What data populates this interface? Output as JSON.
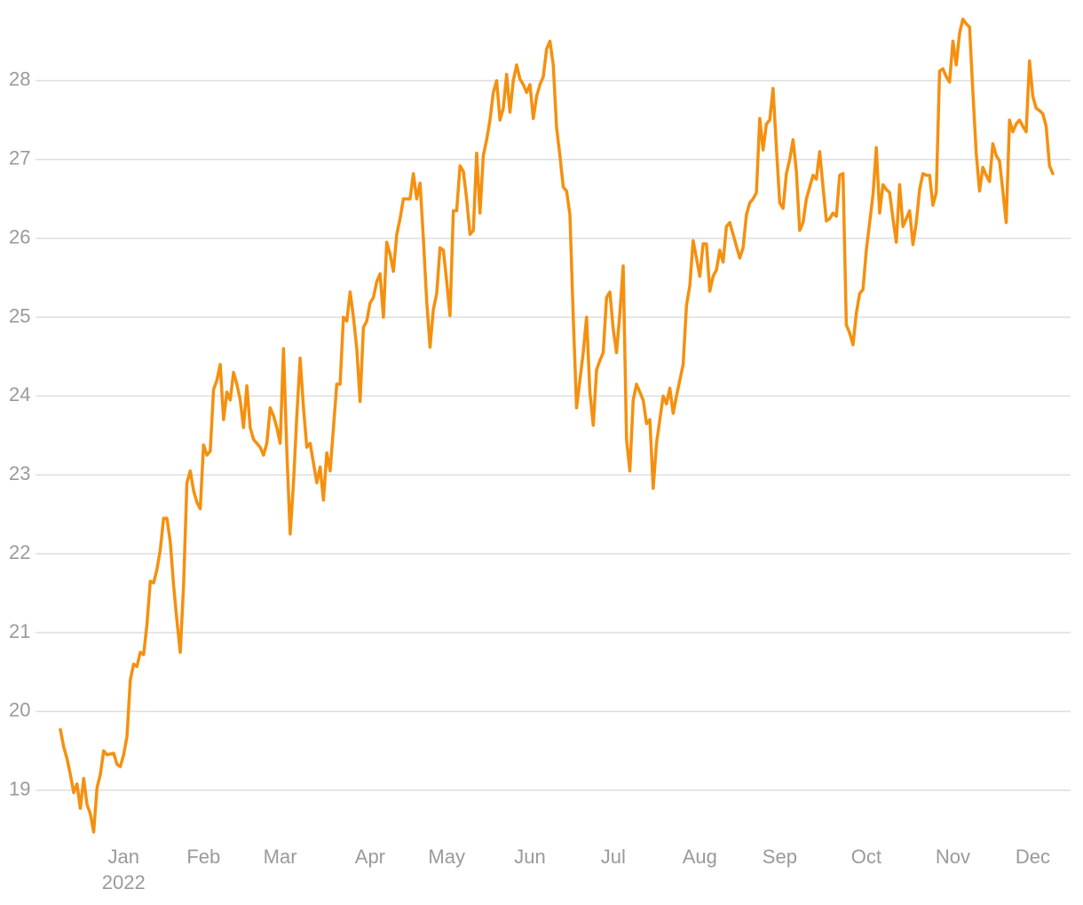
{
  "chart_data": {
    "type": "line",
    "categories": [
      null,
      null,
      null,
      null,
      null,
      null,
      null,
      null,
      null,
      null,
      null,
      null,
      null,
      null,
      null,
      null,
      null,
      null,
      null,
      "Jan",
      null,
      null,
      null,
      null,
      null,
      null,
      null,
      null,
      null,
      null,
      null,
      null,
      null,
      null,
      null,
      null,
      null,
      null,
      null,
      null,
      null,
      null,
      null,
      "Feb",
      null,
      null,
      null,
      null,
      null,
      null,
      null,
      null,
      null,
      null,
      null,
      null,
      null,
      null,
      null,
      null,
      null,
      null,
      null,
      null,
      null,
      null,
      "Mar",
      null,
      null,
      null,
      null,
      null,
      null,
      null,
      null,
      null,
      null,
      null,
      null,
      null,
      null,
      null,
      null,
      null,
      null,
      null,
      null,
      null,
      null,
      null,
      null,
      null,
      null,
      "Apr",
      null,
      null,
      null,
      null,
      null,
      null,
      null,
      null,
      null,
      null,
      null,
      null,
      null,
      null,
      null,
      null,
      null,
      null,
      null,
      null,
      null,
      null,
      "May",
      null,
      null,
      null,
      null,
      null,
      null,
      null,
      null,
      null,
      null,
      null,
      null,
      null,
      null,
      null,
      null,
      null,
      null,
      null,
      null,
      null,
      null,
      null,
      null,
      "Jun",
      null,
      null,
      null,
      null,
      null,
      null,
      null,
      null,
      null,
      null,
      null,
      null,
      null,
      null,
      null,
      null,
      null,
      null,
      null,
      null,
      null,
      null,
      null,
      null,
      "Jul",
      null,
      null,
      null,
      null,
      null,
      null,
      null,
      null,
      null,
      null,
      null,
      null,
      null,
      null,
      null,
      null,
      null,
      null,
      null,
      null,
      null,
      null,
      null,
      null,
      null,
      "Aug",
      null,
      null,
      null,
      null,
      null,
      null,
      null,
      null,
      null,
      null,
      null,
      null,
      null,
      null,
      null,
      null,
      null,
      null,
      null,
      null,
      null,
      null,
      null,
      "Sep",
      null,
      null,
      null,
      null,
      null,
      null,
      null,
      null,
      null,
      null,
      null,
      null,
      null,
      null,
      null,
      null,
      null,
      null,
      null,
      null,
      null,
      null,
      null,
      null,
      null,
      "Oct",
      null,
      null,
      null,
      null,
      null,
      null,
      null,
      null,
      null,
      null,
      null,
      null,
      null,
      null,
      null,
      null,
      null,
      null,
      null,
      null,
      null,
      null,
      null,
      null,
      null,
      "Nov",
      null,
      null,
      null,
      null,
      null,
      null,
      null,
      null,
      null,
      null,
      null,
      null,
      null,
      null,
      null,
      null,
      null,
      null,
      null,
      null,
      null,
      null,
      null,
      "Dec",
      null,
      null,
      null,
      null,
      null,
      null
    ],
    "year_label": "2022",
    "series": [
      {
        "color": "#f5900f",
        "values": [
          19.77,
          19.55,
          19.4,
          19.2,
          18.97,
          19.08,
          18.77,
          19.15,
          18.82,
          18.7,
          18.47,
          19.03,
          19.2,
          19.5,
          19.45,
          19.46,
          19.47,
          19.33,
          19.3,
          19.45,
          19.68,
          20.4,
          20.6,
          20.57,
          20.75,
          20.72,
          21.1,
          21.65,
          21.63,
          21.8,
          22.05,
          22.45,
          22.45,
          22.15,
          21.6,
          21.15,
          20.75,
          21.6,
          22.9,
          23.05,
          22.8,
          22.65,
          22.57,
          23.38,
          23.25,
          23.3,
          24.08,
          24.2,
          24.4,
          23.7,
          24.05,
          23.95,
          24.3,
          24.15,
          23.95,
          23.6,
          24.13,
          23.6,
          23.45,
          23.4,
          23.35,
          23.25,
          23.4,
          23.85,
          23.75,
          23.6,
          23.4,
          24.6,
          23.3,
          22.25,
          22.9,
          23.75,
          24.48,
          23.85,
          23.35,
          23.4,
          23.15,
          22.9,
          23.1,
          22.68,
          23.28,
          23.05,
          23.6,
          24.15,
          24.15,
          25.0,
          24.95,
          25.32,
          25.0,
          24.6,
          23.93,
          24.87,
          24.95,
          25.18,
          25.25,
          25.45,
          25.55,
          25.0,
          25.95,
          25.8,
          25.58,
          26.05,
          26.25,
          26.5,
          26.5,
          26.5,
          26.82,
          26.5,
          26.7,
          26.0,
          25.2,
          24.62,
          25.1,
          25.3,
          25.88,
          25.85,
          25.45,
          25.02,
          26.35,
          26.35,
          26.92,
          26.85,
          26.5,
          26.05,
          26.1,
          27.08,
          26.32,
          27.05,
          27.25,
          27.5,
          27.85,
          28.0,
          27.5,
          27.65,
          28.08,
          27.6,
          28.0,
          28.2,
          28.02,
          27.95,
          27.85,
          27.95,
          27.52,
          27.8,
          27.95,
          28.05,
          28.4,
          28.5,
          28.2,
          27.4,
          27.05,
          26.65,
          26.6,
          26.3,
          25.0,
          23.85,
          24.2,
          24.55,
          25.0,
          24.05,
          23.63,
          24.33,
          24.45,
          24.55,
          25.25,
          25.32,
          24.85,
          24.55,
          25.05,
          25.65,
          23.45,
          23.05,
          23.95,
          24.15,
          24.05,
          23.95,
          23.65,
          23.7,
          22.83,
          23.4,
          23.7,
          24.0,
          23.9,
          24.1,
          23.78,
          24.0,
          24.2,
          24.4,
          25.15,
          25.4,
          25.97,
          25.75,
          25.52,
          25.93,
          25.93,
          25.33,
          25.52,
          25.6,
          25.85,
          25.7,
          26.15,
          26.2,
          26.05,
          25.9,
          25.75,
          25.88,
          26.3,
          26.45,
          26.5,
          26.58,
          27.52,
          27.12,
          27.45,
          27.5,
          27.9,
          27.15,
          26.45,
          26.38,
          26.82,
          27.0,
          27.25,
          26.85,
          26.1,
          26.2,
          26.5,
          26.65,
          26.8,
          26.75,
          27.1,
          26.65,
          26.22,
          26.25,
          26.32,
          26.28,
          26.8,
          26.82,
          24.9,
          24.8,
          24.65,
          25.05,
          25.3,
          25.35,
          25.85,
          26.2,
          26.55,
          27.15,
          26.32,
          26.68,
          26.62,
          26.58,
          26.25,
          25.95,
          26.68,
          26.15,
          26.25,
          26.35,
          25.92,
          26.2,
          26.62,
          26.82,
          26.8,
          26.8,
          26.42,
          26.58,
          28.12,
          28.15,
          28.05,
          27.98,
          28.5,
          28.2,
          28.6,
          28.78,
          28.72,
          28.68,
          27.85,
          27.08,
          26.6,
          26.9,
          26.8,
          26.72,
          27.2,
          27.05,
          26.98,
          26.6,
          26.2,
          27.5,
          27.35,
          27.45,
          27.5,
          27.42,
          27.35,
          28.25,
          27.8,
          27.65,
          27.62,
          27.58,
          27.42,
          26.92,
          26.82
        ]
      }
    ],
    "ylim": [
      18.4,
      29.0
    ],
    "yticks": [
      19,
      20,
      21,
      22,
      23,
      24,
      25,
      26,
      27,
      28
    ],
    "grid": true
  }
}
